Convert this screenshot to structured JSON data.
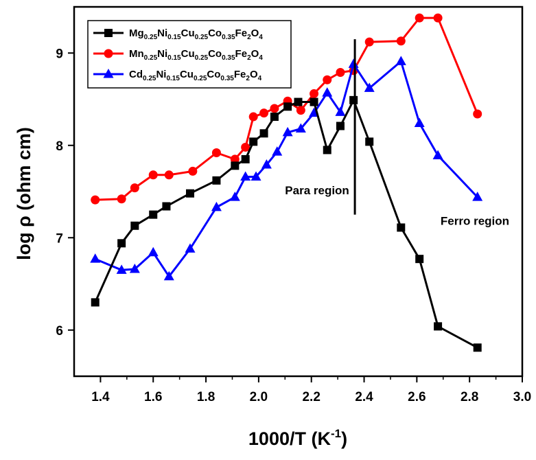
{
  "chart_data": {
    "type": "line",
    "xlabel": {
      "base": "1000/T (K",
      "sup": "-1",
      "tail": ")"
    },
    "ylabel": "log ρ (ohm cm)",
    "xlim": [
      1.3,
      3.0
    ],
    "ylim": [
      5.5,
      9.5
    ],
    "xticks": [
      1.4,
      1.6,
      1.8,
      2.0,
      2.2,
      2.4,
      2.6,
      2.8,
      3.0
    ],
    "xtick_labels": [
      "1.4",
      "1.6",
      "1.8",
      "2.0",
      "2.2",
      "2.4",
      "2.6",
      "2.8",
      "3.0"
    ],
    "yticks": [
      6,
      7,
      8,
      9
    ],
    "ytick_labels": [
      "6",
      "7",
      "8",
      "9"
    ],
    "legend_position": "top-left",
    "series": [
      {
        "name": [
          [
            "Mg",
            ""
          ],
          [
            "0.25",
            "sub"
          ],
          [
            "Ni",
            ""
          ],
          [
            "0.15",
            "sub"
          ],
          [
            "Cu",
            ""
          ],
          [
            "0.25",
            "sub"
          ],
          [
            "Co",
            ""
          ],
          [
            "0.35",
            "sub"
          ],
          [
            "Fe",
            ""
          ],
          [
            "2",
            "sub"
          ],
          [
            "O",
            ""
          ],
          [
            "4",
            "sub"
          ]
        ],
        "color": "#000000",
        "marker": "square",
        "x": [
          1.38,
          1.48,
          1.53,
          1.6,
          1.65,
          1.74,
          1.84,
          1.91,
          1.95,
          1.98,
          2.02,
          2.06,
          2.11,
          2.15,
          2.21,
          2.26,
          2.31,
          2.36,
          2.42,
          2.54,
          2.61,
          2.68,
          2.83
        ],
        "y": [
          6.3,
          6.94,
          7.13,
          7.25,
          7.34,
          7.48,
          7.62,
          7.78,
          7.85,
          8.04,
          8.13,
          8.31,
          8.42,
          8.47,
          8.47,
          7.95,
          8.21,
          8.49,
          8.04,
          7.11,
          6.77,
          6.04,
          5.81
        ]
      },
      {
        "name": [
          [
            "Mn",
            ""
          ],
          [
            "0.25",
            "sub"
          ],
          [
            "Ni",
            ""
          ],
          [
            "0.15",
            "sub"
          ],
          [
            "Cu",
            ""
          ],
          [
            "0.25",
            "sub"
          ],
          [
            "Co",
            ""
          ],
          [
            "0.35",
            "sub"
          ],
          [
            "Fe",
            ""
          ],
          [
            "2",
            "sub"
          ],
          [
            "O",
            ""
          ],
          [
            "4",
            "sub"
          ]
        ],
        "color": "#ff0000",
        "marker": "circle",
        "x": [
          1.38,
          1.48,
          1.53,
          1.6,
          1.66,
          1.75,
          1.84,
          1.91,
          1.95,
          1.98,
          2.02,
          2.06,
          2.11,
          2.16,
          2.21,
          2.26,
          2.31,
          2.36,
          2.42,
          2.54,
          2.61,
          2.68,
          2.83
        ],
        "y": [
          7.41,
          7.42,
          7.54,
          7.68,
          7.68,
          7.72,
          7.92,
          7.85,
          7.98,
          8.31,
          8.35,
          8.4,
          8.48,
          8.38,
          8.56,
          8.71,
          8.79,
          8.81,
          9.12,
          9.13,
          9.38,
          9.38,
          8.34
        ]
      },
      {
        "name": [
          [
            "Cd",
            ""
          ],
          [
            "0.25",
            "sub"
          ],
          [
            "Ni",
            ""
          ],
          [
            "0.15",
            "sub"
          ],
          [
            "Cu",
            ""
          ],
          [
            "0.25",
            "sub"
          ],
          [
            "Co",
            ""
          ],
          [
            "0.35",
            "sub"
          ],
          [
            "Fe",
            ""
          ],
          [
            "2",
            "sub"
          ],
          [
            "O",
            ""
          ],
          [
            "4",
            "sub"
          ]
        ],
        "color": "#0000ff",
        "marker": "triangle",
        "x": [
          1.38,
          1.48,
          1.53,
          1.6,
          1.66,
          1.74,
          1.84,
          1.91,
          1.95,
          1.99,
          2.03,
          2.07,
          2.11,
          2.16,
          2.21,
          2.26,
          2.31,
          2.36,
          2.42,
          2.54,
          2.61,
          2.68,
          2.83
        ],
        "y": [
          6.77,
          6.65,
          6.66,
          6.84,
          6.58,
          6.88,
          7.33,
          7.44,
          7.66,
          7.66,
          7.79,
          7.93,
          8.14,
          8.18,
          8.35,
          8.57,
          8.36,
          8.88,
          8.62,
          8.91,
          8.24,
          7.89,
          7.44
        ]
      }
    ],
    "annotations": [
      {
        "text": "Para region",
        "x": 2.1,
        "y": 7.47
      },
      {
        "text": "Ferro region",
        "x": 2.69,
        "y": 7.14
      }
    ],
    "vline": {
      "x": 2.365,
      "y1": 7.25,
      "y2": 9.15
    }
  }
}
